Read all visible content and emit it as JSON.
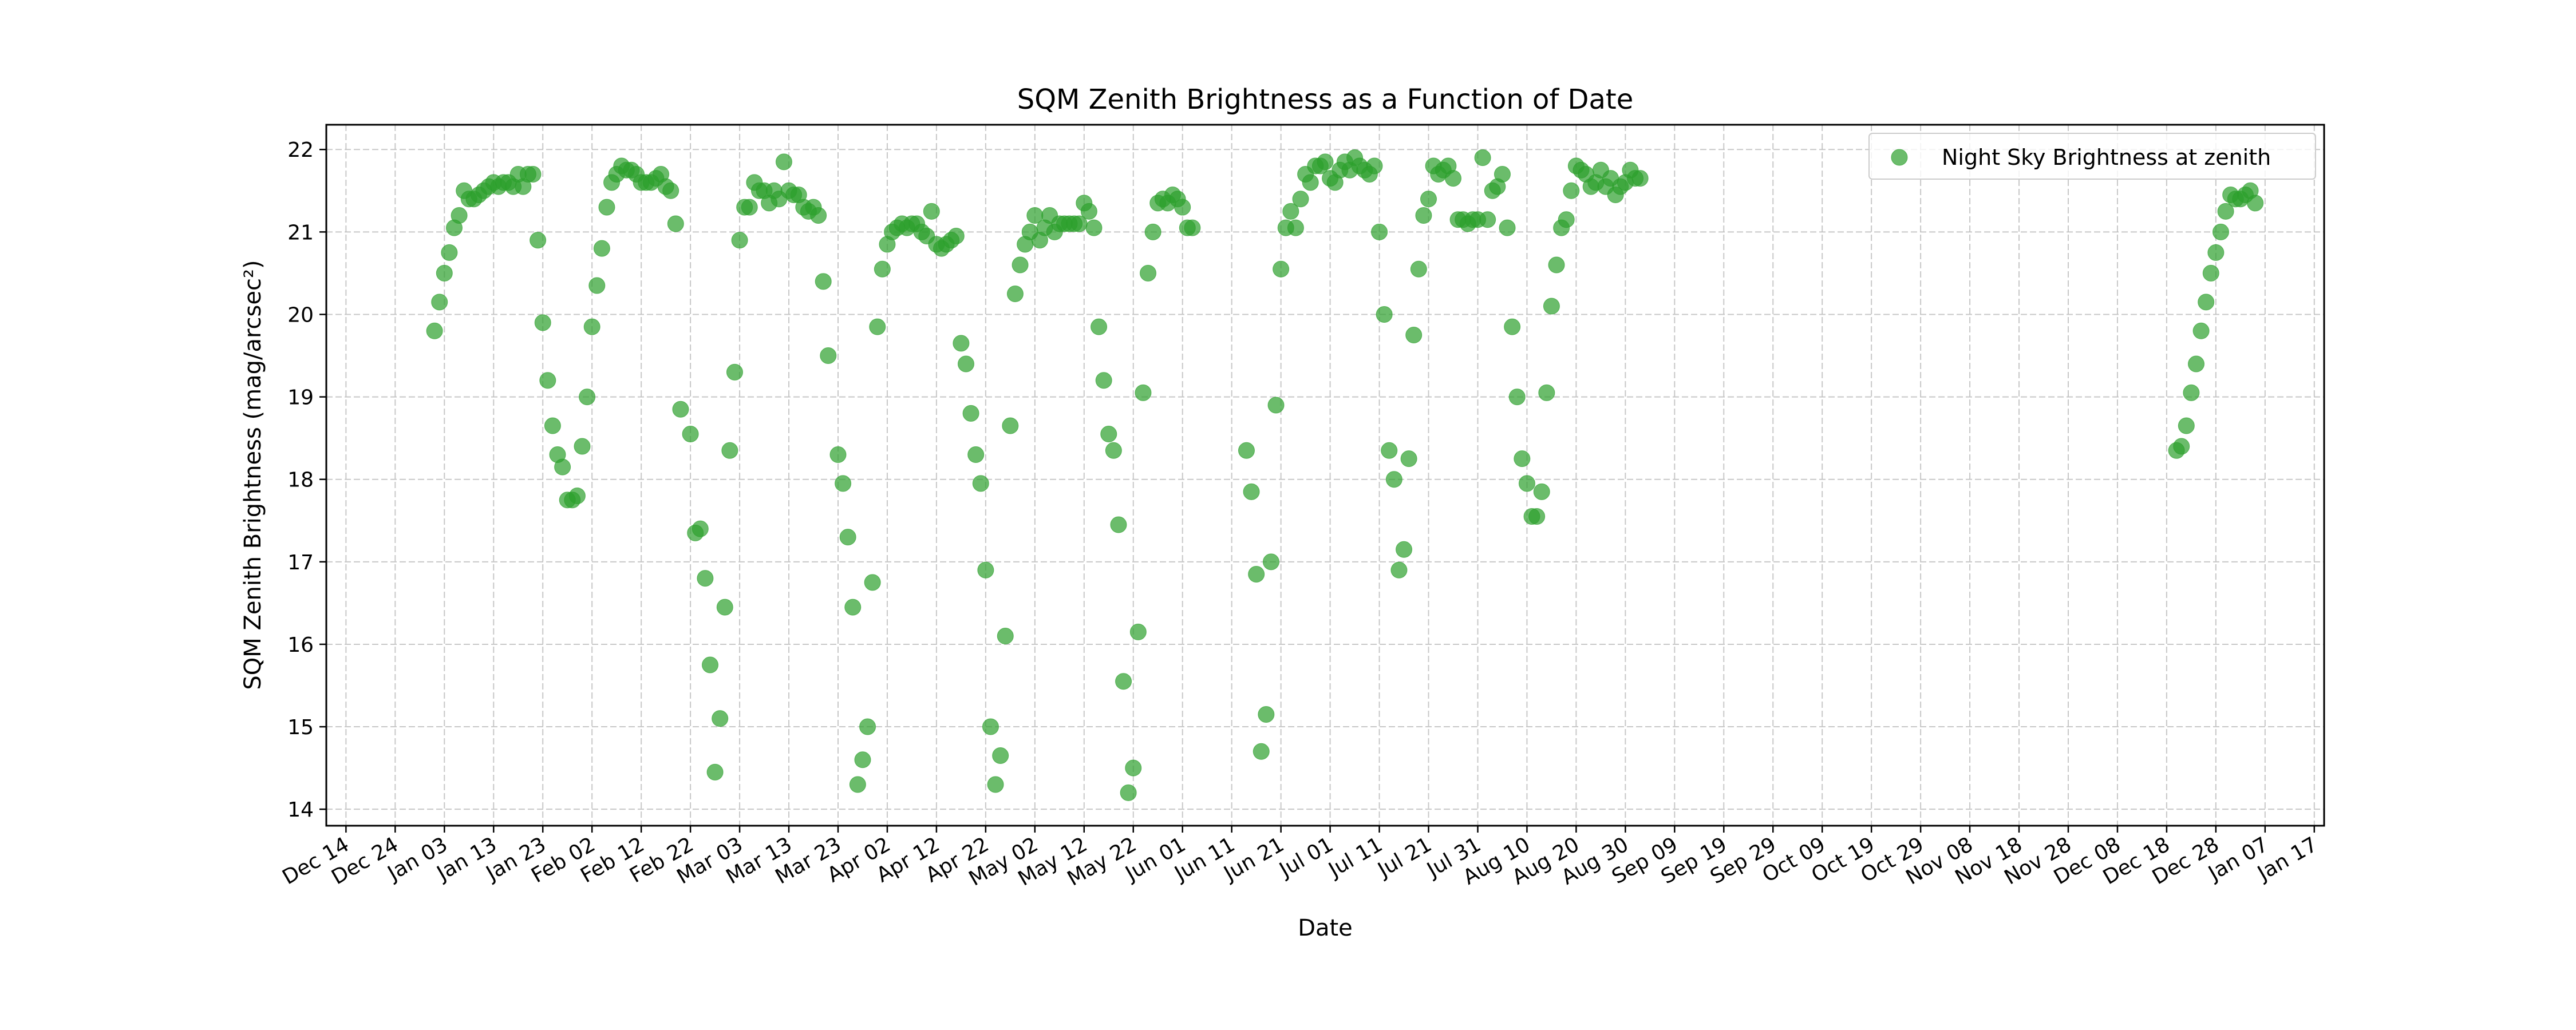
{
  "chart_data": {
    "type": "scatter",
    "title": "SQM Zenith Brightness as a Function of Date",
    "xlabel": "Date",
    "ylabel": "SQM Zenith Brightness (mag/arcsec²)",
    "grid": true,
    "legend_position": "top-right",
    "ylim": [
      13.8,
      22.3
    ],
    "xlim": [
      "2023-12-10",
      "2025-01-19"
    ],
    "x_ticks": [
      "2023-12-14",
      "2023-12-24",
      "2024-01-03",
      "2024-01-13",
      "2024-01-23",
      "2024-02-02",
      "2024-02-12",
      "2024-02-22",
      "2024-03-03",
      "2024-03-13",
      "2024-03-23",
      "2024-04-02",
      "2024-04-12",
      "2024-04-22",
      "2024-05-02",
      "2024-05-12",
      "2024-05-22",
      "2024-06-01",
      "2024-06-11",
      "2024-06-21",
      "2024-07-01",
      "2024-07-11",
      "2024-07-21",
      "2024-07-31",
      "2024-08-10",
      "2024-08-20",
      "2024-08-30",
      "2024-09-09",
      "2024-09-19",
      "2024-09-29",
      "2024-10-09",
      "2024-10-19",
      "2024-10-29",
      "2024-11-08",
      "2024-11-18",
      "2024-11-28",
      "2024-12-08",
      "2024-12-18",
      "2024-12-28",
      "2025-01-07",
      "2025-01-17"
    ],
    "x_tick_labels": [
      "Dec 14",
      "Dec 24",
      "Jan 03",
      "Jan 13",
      "Jan 23",
      "Feb 02",
      "Feb 12",
      "Feb 22",
      "Mar 03",
      "Mar 13",
      "Mar 23",
      "Apr 02",
      "Apr 12",
      "Apr 22",
      "May 02",
      "May 12",
      "May 22",
      "Jun 01",
      "Jun 11",
      "Jun 21",
      "Jul 01",
      "Jul 11",
      "Jul 21",
      "Jul 31",
      "Aug 10",
      "Aug 20",
      "Aug 30",
      "Sep 09",
      "Sep 19",
      "Sep 29",
      "Oct 09",
      "Oct 19",
      "Oct 29",
      "Nov 08",
      "Nov 18",
      "Nov 28",
      "Dec 08",
      "Dec 18",
      "Dec 28",
      "Jan 07",
      "Jan 17"
    ],
    "y_ticks": [
      14,
      15,
      16,
      17,
      18,
      19,
      20,
      21,
      22
    ],
    "series": [
      {
        "name": "Night Sky Brightness at zenith",
        "color": "#2ca02c",
        "marker": "circle",
        "points": [
          [
            "2024-01-01",
            19.8
          ],
          [
            "2024-01-02",
            20.15
          ],
          [
            "2024-01-03",
            20.5
          ],
          [
            "2024-01-04",
            20.75
          ],
          [
            "2024-01-05",
            21.05
          ],
          [
            "2024-01-06",
            21.2
          ],
          [
            "2024-01-07",
            21.5
          ],
          [
            "2024-01-08",
            21.4
          ],
          [
            "2024-01-09",
            21.4
          ],
          [
            "2024-01-10",
            21.45
          ],
          [
            "2024-01-11",
            21.5
          ],
          [
            "2024-01-12",
            21.55
          ],
          [
            "2024-01-13",
            21.6
          ],
          [
            "2024-01-14",
            21.55
          ],
          [
            "2024-01-15",
            21.6
          ],
          [
            "2024-01-16",
            21.6
          ],
          [
            "2024-01-17",
            21.55
          ],
          [
            "2024-01-18",
            21.7
          ],
          [
            "2024-01-19",
            21.55
          ],
          [
            "2024-01-20",
            21.7
          ],
          [
            "2024-01-21",
            21.7
          ],
          [
            "2024-01-22",
            20.9
          ],
          [
            "2024-01-23",
            19.9
          ],
          [
            "2024-01-24",
            19.2
          ],
          [
            "2024-01-25",
            18.65
          ],
          [
            "2024-01-26",
            18.3
          ],
          [
            "2024-01-27",
            18.15
          ],
          [
            "2024-01-28",
            17.75
          ],
          [
            "2024-01-29",
            17.75
          ],
          [
            "2024-01-30",
            17.8
          ],
          [
            "2024-01-31",
            18.4
          ],
          [
            "2024-02-01",
            19.0
          ],
          [
            "2024-02-02",
            19.85
          ],
          [
            "2024-02-03",
            20.35
          ],
          [
            "2024-02-04",
            20.8
          ],
          [
            "2024-02-05",
            21.3
          ],
          [
            "2024-02-06",
            21.6
          ],
          [
            "2024-02-07",
            21.7
          ],
          [
            "2024-02-08",
            21.8
          ],
          [
            "2024-02-09",
            21.75
          ],
          [
            "2024-02-10",
            21.75
          ],
          [
            "2024-02-11",
            21.7
          ],
          [
            "2024-02-12",
            21.6
          ],
          [
            "2024-02-13",
            21.6
          ],
          [
            "2024-02-14",
            21.6
          ],
          [
            "2024-02-15",
            21.65
          ],
          [
            "2024-02-16",
            21.7
          ],
          [
            "2024-02-17",
            21.55
          ],
          [
            "2024-02-18",
            21.5
          ],
          [
            "2024-02-19",
            21.1
          ],
          [
            "2024-02-20",
            18.85
          ],
          [
            "2024-02-22",
            18.55
          ],
          [
            "2024-02-23",
            17.35
          ],
          [
            "2024-02-24",
            17.4
          ],
          [
            "2024-02-25",
            16.8
          ],
          [
            "2024-02-26",
            15.75
          ],
          [
            "2024-02-27",
            14.45
          ],
          [
            "2024-02-28",
            15.1
          ],
          [
            "2024-02-29",
            16.45
          ],
          [
            "2024-03-01",
            18.35
          ],
          [
            "2024-03-02",
            19.3
          ],
          [
            "2024-03-03",
            20.9
          ],
          [
            "2024-03-04",
            21.3
          ],
          [
            "2024-03-05",
            21.3
          ],
          [
            "2024-03-06",
            21.6
          ],
          [
            "2024-03-07",
            21.5
          ],
          [
            "2024-03-08",
            21.5
          ],
          [
            "2024-03-09",
            21.35
          ],
          [
            "2024-03-10",
            21.5
          ],
          [
            "2024-03-11",
            21.4
          ],
          [
            "2024-03-12",
            21.85
          ],
          [
            "2024-03-13",
            21.5
          ],
          [
            "2024-03-14",
            21.45
          ],
          [
            "2024-03-15",
            21.45
          ],
          [
            "2024-03-16",
            21.3
          ],
          [
            "2024-03-17",
            21.25
          ],
          [
            "2024-03-18",
            21.3
          ],
          [
            "2024-03-19",
            21.2
          ],
          [
            "2024-03-20",
            20.4
          ],
          [
            "2024-03-21",
            19.5
          ],
          [
            "2024-03-23",
            18.3
          ],
          [
            "2024-03-24",
            17.95
          ],
          [
            "2024-03-25",
            17.3
          ],
          [
            "2024-03-26",
            16.45
          ],
          [
            "2024-03-27",
            14.3
          ],
          [
            "2024-03-28",
            14.6
          ],
          [
            "2024-03-29",
            15.0
          ],
          [
            "2024-03-30",
            16.75
          ],
          [
            "2024-03-31",
            19.85
          ],
          [
            "2024-04-01",
            20.55
          ],
          [
            "2024-04-02",
            20.85
          ],
          [
            "2024-04-03",
            21.0
          ],
          [
            "2024-04-04",
            21.05
          ],
          [
            "2024-04-05",
            21.1
          ],
          [
            "2024-04-06",
            21.05
          ],
          [
            "2024-04-07",
            21.1
          ],
          [
            "2024-04-08",
            21.1
          ],
          [
            "2024-04-09",
            21.0
          ],
          [
            "2024-04-10",
            20.95
          ],
          [
            "2024-04-11",
            21.25
          ],
          [
            "2024-04-12",
            20.85
          ],
          [
            "2024-04-13",
            20.8
          ],
          [
            "2024-04-14",
            20.85
          ],
          [
            "2024-04-15",
            20.9
          ],
          [
            "2024-04-16",
            20.95
          ],
          [
            "2024-04-17",
            19.65
          ],
          [
            "2024-04-18",
            19.4
          ],
          [
            "2024-04-19",
            18.8
          ],
          [
            "2024-04-20",
            18.3
          ],
          [
            "2024-04-21",
            17.95
          ],
          [
            "2024-04-22",
            16.9
          ],
          [
            "2024-04-23",
            15.0
          ],
          [
            "2024-04-24",
            14.3
          ],
          [
            "2024-04-25",
            14.65
          ],
          [
            "2024-04-26",
            16.1
          ],
          [
            "2024-04-27",
            18.65
          ],
          [
            "2024-04-28",
            20.25
          ],
          [
            "2024-04-29",
            20.6
          ],
          [
            "2024-04-30",
            20.85
          ],
          [
            "2024-05-01",
            21.0
          ],
          [
            "2024-05-02",
            21.2
          ],
          [
            "2024-05-03",
            20.9
          ],
          [
            "2024-05-04",
            21.05
          ],
          [
            "2024-05-05",
            21.2
          ],
          [
            "2024-05-06",
            21.0
          ],
          [
            "2024-05-07",
            21.1
          ],
          [
            "2024-05-08",
            21.1
          ],
          [
            "2024-05-09",
            21.1
          ],
          [
            "2024-05-10",
            21.1
          ],
          [
            "2024-05-11",
            21.1
          ],
          [
            "2024-05-12",
            21.35
          ],
          [
            "2024-05-13",
            21.25
          ],
          [
            "2024-05-14",
            21.05
          ],
          [
            "2024-05-15",
            19.85
          ],
          [
            "2024-05-16",
            19.2
          ],
          [
            "2024-05-17",
            18.55
          ],
          [
            "2024-05-18",
            18.35
          ],
          [
            "2024-05-19",
            17.45
          ],
          [
            "2024-05-20",
            15.55
          ],
          [
            "2024-05-21",
            14.2
          ],
          [
            "2024-05-22",
            14.5
          ],
          [
            "2024-05-23",
            16.15
          ],
          [
            "2024-05-24",
            19.05
          ],
          [
            "2024-05-25",
            20.5
          ],
          [
            "2024-05-26",
            21.0
          ],
          [
            "2024-05-27",
            21.35
          ],
          [
            "2024-05-28",
            21.4
          ],
          [
            "2024-05-29",
            21.35
          ],
          [
            "2024-05-30",
            21.45
          ],
          [
            "2024-05-31",
            21.4
          ],
          [
            "2024-06-01",
            21.3
          ],
          [
            "2024-06-02",
            21.05
          ],
          [
            "2024-06-03",
            21.05
          ],
          [
            "2024-06-14",
            18.35
          ],
          [
            "2024-06-15",
            17.85
          ],
          [
            "2024-06-16",
            16.85
          ],
          [
            "2024-06-17",
            14.7
          ],
          [
            "2024-06-18",
            15.15
          ],
          [
            "2024-06-19",
            17.0
          ],
          [
            "2024-06-20",
            18.9
          ],
          [
            "2024-06-21",
            20.55
          ],
          [
            "2024-06-22",
            21.05
          ],
          [
            "2024-06-23",
            21.25
          ],
          [
            "2024-06-24",
            21.05
          ],
          [
            "2024-06-25",
            21.4
          ],
          [
            "2024-06-26",
            21.7
          ],
          [
            "2024-06-27",
            21.6
          ],
          [
            "2024-06-28",
            21.8
          ],
          [
            "2024-06-29",
            21.8
          ],
          [
            "2024-06-30",
            21.85
          ],
          [
            "2024-07-01",
            21.65
          ],
          [
            "2024-07-02",
            21.6
          ],
          [
            "2024-07-03",
            21.75
          ],
          [
            "2024-07-04",
            21.85
          ],
          [
            "2024-07-05",
            21.75
          ],
          [
            "2024-07-06",
            21.9
          ],
          [
            "2024-07-07",
            21.8
          ],
          [
            "2024-07-08",
            21.75
          ],
          [
            "2024-07-09",
            21.7
          ],
          [
            "2024-07-10",
            21.8
          ],
          [
            "2024-07-11",
            21.0
          ],
          [
            "2024-07-12",
            20.0
          ],
          [
            "2024-07-13",
            18.35
          ],
          [
            "2024-07-14",
            18.0
          ],
          [
            "2024-07-15",
            16.9
          ],
          [
            "2024-07-16",
            17.15
          ],
          [
            "2024-07-17",
            18.25
          ],
          [
            "2024-07-18",
            19.75
          ],
          [
            "2024-07-19",
            20.55
          ],
          [
            "2024-07-20",
            21.2
          ],
          [
            "2024-07-21",
            21.4
          ],
          [
            "2024-07-22",
            21.8
          ],
          [
            "2024-07-23",
            21.7
          ],
          [
            "2024-07-24",
            21.75
          ],
          [
            "2024-07-25",
            21.8
          ],
          [
            "2024-07-26",
            21.65
          ],
          [
            "2024-07-27",
            21.15
          ],
          [
            "2024-07-28",
            21.15
          ],
          [
            "2024-07-29",
            21.1
          ],
          [
            "2024-07-30",
            21.15
          ],
          [
            "2024-07-31",
            21.15
          ],
          [
            "2024-08-01",
            21.9
          ],
          [
            "2024-08-02",
            21.15
          ],
          [
            "2024-08-03",
            21.5
          ],
          [
            "2024-08-04",
            21.55
          ],
          [
            "2024-08-05",
            21.7
          ],
          [
            "2024-08-06",
            21.05
          ],
          [
            "2024-08-07",
            19.85
          ],
          [
            "2024-08-08",
            19.0
          ],
          [
            "2024-08-09",
            18.25
          ],
          [
            "2024-08-10",
            17.95
          ],
          [
            "2024-08-11",
            17.55
          ],
          [
            "2024-08-12",
            17.55
          ],
          [
            "2024-08-13",
            17.85
          ],
          [
            "2024-08-14",
            19.05
          ],
          [
            "2024-08-15",
            20.1
          ],
          [
            "2024-08-16",
            20.6
          ],
          [
            "2024-08-17",
            21.05
          ],
          [
            "2024-08-18",
            21.15
          ],
          [
            "2024-08-19",
            21.5
          ],
          [
            "2024-08-20",
            21.8
          ],
          [
            "2024-08-21",
            21.75
          ],
          [
            "2024-08-22",
            21.7
          ],
          [
            "2024-08-23",
            21.55
          ],
          [
            "2024-08-24",
            21.6
          ],
          [
            "2024-08-25",
            21.75
          ],
          [
            "2024-08-26",
            21.55
          ],
          [
            "2024-08-27",
            21.65
          ],
          [
            "2024-08-28",
            21.45
          ],
          [
            "2024-08-29",
            21.55
          ],
          [
            "2024-08-30",
            21.6
          ],
          [
            "2024-08-31",
            21.75
          ],
          [
            "2024-09-01",
            21.65
          ],
          [
            "2024-09-02",
            21.65
          ],
          [
            "2024-12-20",
            18.35
          ],
          [
            "2024-12-21",
            18.4
          ],
          [
            "2024-12-22",
            18.65
          ],
          [
            "2024-12-23",
            19.05
          ],
          [
            "2024-12-24",
            19.4
          ],
          [
            "2024-12-25",
            19.8
          ],
          [
            "2024-12-26",
            20.15
          ],
          [
            "2024-12-27",
            20.5
          ],
          [
            "2024-12-28",
            20.75
          ],
          [
            "2024-12-29",
            21.0
          ],
          [
            "2024-12-30",
            21.25
          ],
          [
            "2024-12-31",
            21.45
          ],
          [
            "2025-01-01",
            21.4
          ],
          [
            "2025-01-02",
            21.4
          ],
          [
            "2025-01-03",
            21.45
          ],
          [
            "2025-01-04",
            21.5
          ],
          [
            "2025-01-05",
            21.35
          ]
        ]
      }
    ]
  }
}
